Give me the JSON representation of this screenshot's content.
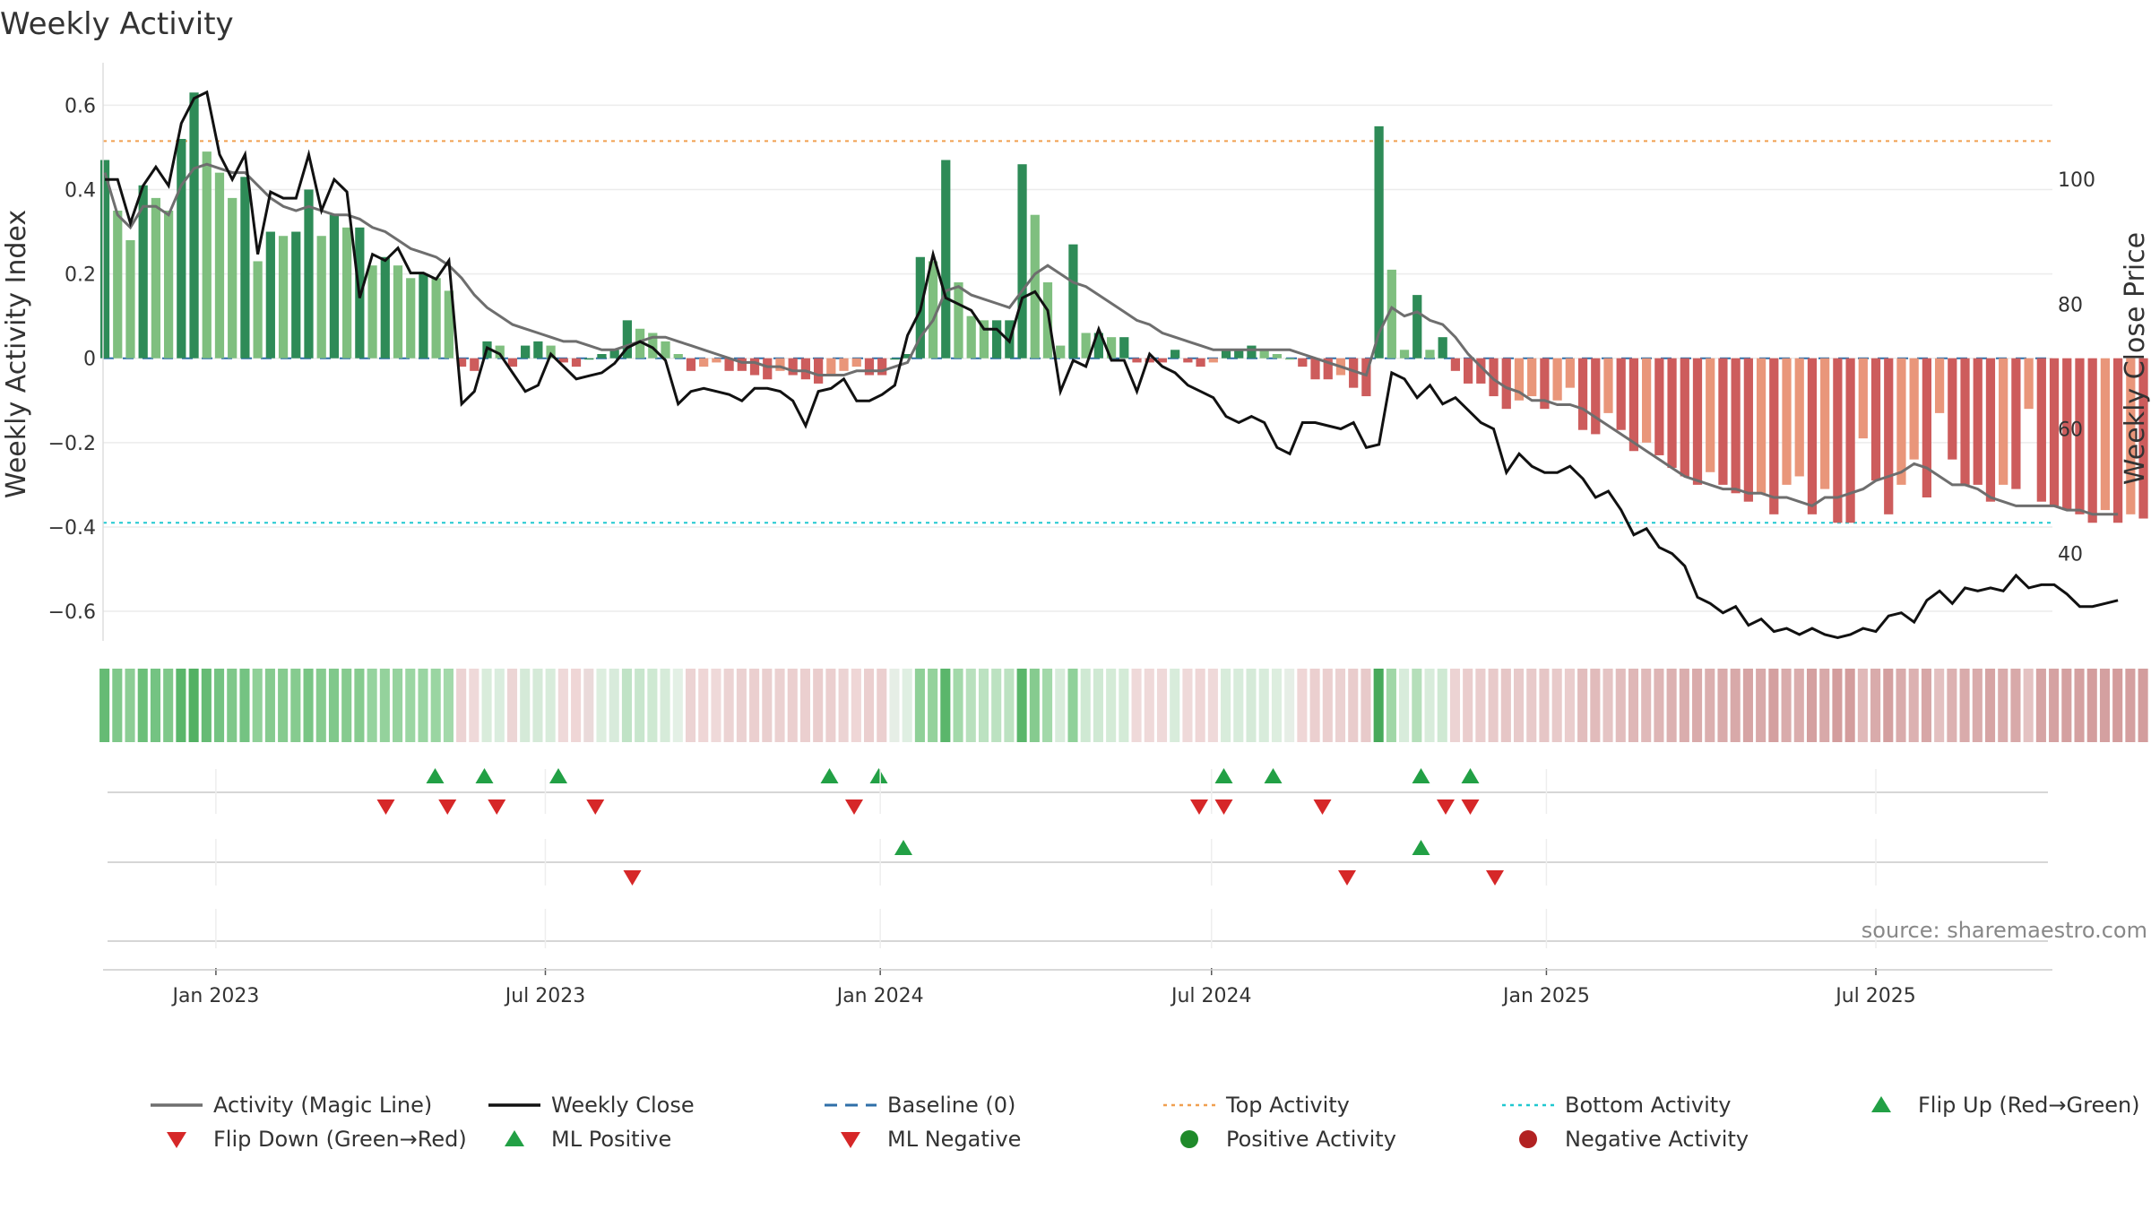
{
  "chart_data": {
    "type": "bar",
    "title": "Weekly Activity",
    "ylabel": "Weekly Activity Index",
    "y2label": "Weekly Close Price",
    "ylim": [
      -0.67,
      0.69
    ],
    "y2lim": [
      26,
      118
    ],
    "xlim": [
      "2022-10-31",
      "2025-10-06"
    ],
    "yticks": [
      0.6,
      0.4,
      0.2,
      0,
      -0.2,
      -0.4,
      -0.6
    ],
    "ytick_labels": [
      "0.6",
      "0.4",
      "0.2",
      "0",
      "−0.2",
      "−0.4",
      "−0.6"
    ],
    "y2ticks": [
      100,
      80,
      60,
      40
    ],
    "y2tick_labels": [
      "100",
      "80",
      "60",
      "40"
    ],
    "xticks": [
      {
        "date": "2023-01-01",
        "label": "Jan 2023"
      },
      {
        "date": "2023-07-01",
        "label": "Jul 2023"
      },
      {
        "date": "2024-01-01",
        "label": "Jan 2024"
      },
      {
        "date": "2024-07-01",
        "label": "Jul 2024"
      },
      {
        "date": "2025-01-01",
        "label": "Jan 2025"
      },
      {
        "date": "2025-07-01",
        "label": "Jul 2025"
      }
    ],
    "start_date": "2022-11-01",
    "reference_lines": {
      "baseline": 0,
      "top_activity": 0.515,
      "bottom_activity": -0.39
    },
    "activity": [
      0.47,
      0.35,
      0.28,
      0.41,
      0.38,
      0.35,
      0.52,
      0.63,
      0.49,
      0.44,
      0.38,
      0.43,
      0.23,
      0.3,
      0.29,
      0.3,
      0.4,
      0.29,
      0.34,
      0.31,
      0.31,
      0.22,
      0.24,
      0.22,
      0.19,
      0.2,
      0.19,
      0.16,
      -0.02,
      -0.03,
      0.04,
      0.03,
      -0.02,
      0.03,
      0.04,
      0.03,
      -0.01,
      -0.02,
      0.0,
      0.01,
      0.02,
      0.09,
      0.07,
      0.06,
      0.04,
      0.01,
      -0.03,
      -0.02,
      -0.01,
      -0.03,
      -0.03,
      -0.04,
      -0.05,
      -0.03,
      -0.04,
      -0.05,
      -0.06,
      -0.04,
      -0.03,
      -0.02,
      -0.04,
      -0.04,
      0.0,
      0.01,
      0.24,
      0.23,
      0.47,
      0.18,
      0.1,
      0.09,
      0.09,
      0.09,
      0.46,
      0.34,
      0.18,
      0.03,
      0.27,
      0.06,
      0.06,
      0.05,
      0.05,
      -0.01,
      -0.01,
      -0.01,
      0.02,
      -0.01,
      -0.02,
      -0.01,
      0.02,
      0.02,
      0.03,
      0.02,
      0.01,
      0.0,
      -0.02,
      -0.05,
      -0.05,
      -0.04,
      -0.07,
      -0.09,
      0.55,
      0.21,
      0.02,
      0.15,
      0.02,
      0.05,
      -0.03,
      -0.06,
      -0.06,
      -0.09,
      -0.12,
      -0.1,
      -0.09,
      -0.12,
      -0.1,
      -0.07,
      -0.17,
      -0.18,
      -0.13,
      -0.17,
      -0.22,
      -0.2,
      -0.23,
      -0.26,
      -0.28,
      -0.3,
      -0.27,
      -0.3,
      -0.32,
      -0.34,
      -0.32,
      -0.37,
      -0.3,
      -0.28,
      -0.37,
      -0.31,
      -0.39,
      -0.39,
      -0.19,
      -0.29,
      -0.37,
      -0.3,
      -0.24,
      -0.33,
      -0.13,
      -0.24,
      -0.3,
      -0.3,
      -0.34,
      -0.3,
      -0.31,
      -0.12,
      -0.34,
      -0.35,
      -0.36,
      -0.37,
      -0.39,
      -0.36,
      -0.39,
      -0.37,
      -0.38
    ],
    "magic_line": [
      0.44,
      0.34,
      0.31,
      0.36,
      0.36,
      0.34,
      0.41,
      0.45,
      0.46,
      0.45,
      0.44,
      0.44,
      0.41,
      0.38,
      0.36,
      0.35,
      0.36,
      0.35,
      0.34,
      0.34,
      0.33,
      0.31,
      0.3,
      0.28,
      0.26,
      0.25,
      0.24,
      0.22,
      0.19,
      0.15,
      0.12,
      0.1,
      0.08,
      0.07,
      0.06,
      0.05,
      0.04,
      0.04,
      0.03,
      0.02,
      0.02,
      0.03,
      0.04,
      0.05,
      0.05,
      0.04,
      0.03,
      0.02,
      0.01,
      0.0,
      -0.01,
      -0.01,
      -0.02,
      -0.02,
      -0.03,
      -0.03,
      -0.04,
      -0.04,
      -0.04,
      -0.03,
      -0.03,
      -0.03,
      -0.02,
      -0.01,
      0.05,
      0.09,
      0.16,
      0.17,
      0.15,
      0.14,
      0.13,
      0.12,
      0.16,
      0.2,
      0.22,
      0.2,
      0.18,
      0.17,
      0.15,
      0.13,
      0.11,
      0.09,
      0.08,
      0.06,
      0.05,
      0.04,
      0.03,
      0.02,
      0.02,
      0.02,
      0.02,
      0.02,
      0.02,
      0.02,
      0.01,
      0.0,
      -0.01,
      -0.02,
      -0.03,
      -0.04,
      0.06,
      0.12,
      0.1,
      0.11,
      0.09,
      0.08,
      0.05,
      0.01,
      -0.02,
      -0.05,
      -0.07,
      -0.08,
      -0.1,
      -0.1,
      -0.11,
      -0.11,
      -0.12,
      -0.14,
      -0.16,
      -0.18,
      -0.2,
      -0.22,
      -0.24,
      -0.26,
      -0.28,
      -0.29,
      -0.3,
      -0.31,
      -0.31,
      -0.32,
      -0.32,
      -0.33,
      -0.33,
      -0.34,
      -0.35,
      -0.33,
      -0.33,
      -0.32,
      -0.31,
      -0.29,
      -0.28,
      -0.27,
      -0.25,
      -0.26,
      -0.28,
      -0.3,
      -0.3,
      -0.31,
      -0.33,
      -0.34,
      -0.35,
      -0.35,
      -0.35,
      -0.35,
      -0.36,
      -0.36,
      -0.37,
      -0.37,
      -0.37
    ],
    "weekly_close": [
      100.0,
      100.0,
      93.0,
      99.0,
      102.0,
      99.0,
      109.0,
      113.0,
      114.0,
      104.0,
      100.0,
      104.0,
      88.0,
      98.0,
      97.0,
      97.0,
      104.0,
      95.0,
      100.0,
      98.0,
      81.0,
      88.0,
      87.0,
      89.0,
      85.0,
      85.0,
      84.0,
      87.0,
      64.0,
      66.0,
      73.0,
      72.0,
      69.0,
      66.0,
      67.0,
      72.0,
      70.0,
      68.0,
      68.5,
      69.0,
      70.5,
      73.0,
      74.0,
      73.0,
      71.0,
      64.0,
      66.0,
      66.5,
      66.0,
      65.5,
      64.5,
      66.5,
      66.5,
      66.0,
      64.5,
      60.5,
      66.0,
      66.5,
      68.0,
      64.5,
      64.5,
      65.5,
      67.0,
      75.0,
      79.0,
      88.0,
      81.0,
      80.0,
      79.0,
      76.0,
      76.0,
      74.0,
      81.0,
      82.0,
      79.0,
      66.0,
      71.0,
      70.0,
      76.0,
      71.0,
      71.0,
      66.0,
      72.0,
      70.0,
      69.0,
      67.0,
      66.0,
      65.0,
      62.0,
      61.0,
      62.0,
      61.0,
      57.0,
      56.0,
      61.0,
      61.0,
      60.5,
      60.0,
      61.0,
      57.0,
      57.5,
      69.0,
      68.0,
      65.0,
      67.0,
      64.0,
      65.0,
      63.0,
      61.0,
      60.0,
      53.0,
      56.0,
      54.0,
      53.0,
      53.0,
      54.0,
      52.0,
      49.0,
      50.0,
      47.0,
      43.0,
      44.0,
      41.0,
      40.0,
      38.0,
      33.0,
      32.0,
      30.5,
      31.5,
      28.5,
      29.5,
      27.5,
      28.0,
      27.0,
      28.0,
      27.0,
      26.5,
      27.0,
      28.0,
      27.5,
      30.0,
      30.5,
      29.0,
      32.5,
      34.0,
      32.0,
      34.5,
      34.0,
      34.5,
      34.0,
      36.5,
      34.5,
      35.0,
      35.0,
      33.5,
      31.5,
      31.5,
      32.0,
      32.5
    ],
    "strip_colors": [
      "#66bb74",
      "#7fc88a",
      "#8ccd95",
      "#6cbf79",
      "#74c382",
      "#7fc88a",
      "#5ab66b",
      "#52b163",
      "#66bb74",
      "#74c382",
      "#7fc88a",
      "#74c382",
      "#8fd098",
      "#86cb8f",
      "#86cb8f",
      "#86cb8f",
      "#79c585",
      "#86cb8f",
      "#80c88b",
      "#86cb8f",
      "#86cb8f",
      "#96d39f",
      "#94d29c",
      "#96d39f",
      "#9bd6a3",
      "#9ad5a2",
      "#9ad5a2",
      "#a3d9aa",
      "#ecd3d3",
      "#efd9d9",
      "#d9ecdb",
      "#daedde",
      "#ecd5d5",
      "#d5eaD8",
      "#d5ead8",
      "#d8ecdb",
      "#efd9d9",
      "#efd6d6",
      "#eadada",
      "#ddeedf",
      "#d8ebdb",
      "#c0e3c6",
      "#c8e6cd",
      "#cee9d2",
      "#d6ebd9",
      "#e3f0e5",
      "#ecd3d3",
      "#efd6d6",
      "#efd9d9",
      "#ecd3d3",
      "#ebd1d1",
      "#ebcfcf",
      "#eacfcf",
      "#ebd1d1",
      "#ebcfcf",
      "#ebcfcf",
      "#eacdcd",
      "#ebcfcf",
      "#ecd3d3",
      "#efd6d6",
      "#ebcfcf",
      "#ebcfcf",
      "#e6eee6",
      "#dfefe2",
      "#8fd098",
      "#94d29c",
      "#5ab66b",
      "#a3d9aa",
      "#b8e0bd",
      "#bce2c1",
      "#bce2c1",
      "#bce2c1",
      "#5ab66b",
      "#86cb8f",
      "#a3d9aa",
      "#d8ecdb",
      "#90d19a",
      "#cfe9d3",
      "#cfe9d3",
      "#d4ebd7",
      "#d4ebd7",
      "#efd9d9",
      "#efd9d9",
      "#efd9d9",
      "#d8ecdb",
      "#efd9d9",
      "#efd6d6",
      "#efd9d9",
      "#d8ecdb",
      "#d8ecdb",
      "#d5ead8",
      "#d8ecdb",
      "#ddeedf",
      "#e6eee6",
      "#efd6d6",
      "#ebcfcf",
      "#ebcfcf",
      "#ebd1d1",
      "#e9cccc",
      "#e8caca",
      "#46a95a",
      "#a0d7a7",
      "#d8ecdb",
      "#b5dfba",
      "#d8ecdb",
      "#cfe9d3",
      "#ecd3d3",
      "#eacdcd",
      "#eacdcd",
      "#e8caca",
      "#e6c6c6",
      "#e8caca",
      "#e8caca",
      "#e6c6c6",
      "#e8caca",
      "#eacdcd",
      "#e2bdbd",
      "#e1bbbb",
      "#e5c4c4",
      "#e2bdbd",
      "#dfb7b7",
      "#e0b9b9",
      "#deb5b5",
      "#dcb1b1",
      "#daadad",
      "#d9abab",
      "#dbafaf",
      "#d9abab",
      "#d8a9a9",
      "#d6a4a4",
      "#d8a9a9",
      "#d4a0a0",
      "#d9abab",
      "#daadad",
      "#d4a0a0",
      "#d8a9a9",
      "#d39d9d",
      "#d39d9d",
      "#e0b9b9",
      "#d9abab",
      "#d4a0a0",
      "#d9abab",
      "#dcb1b1",
      "#d7a7a7",
      "#e3c0c0",
      "#dcb1b1",
      "#d9abab",
      "#d9abab",
      "#d6a4a4",
      "#d9abab",
      "#d8a9a9",
      "#e4c2c2",
      "#d6a4a4",
      "#d5a2a2",
      "#d4a0a0",
      "#d4a0a0",
      "#d39d9d",
      "#d4a0a0",
      "#d39d9d",
      "#d4a0a0",
      "#d39d9d"
    ],
    "flip_up": [
      17,
      19,
      22,
      33,
      35,
      49,
      51,
      57,
      59
    ],
    "flip_down": [
      15,
      17.5,
      19.5,
      23.5,
      34,
      48,
      49,
      53,
      58,
      59
    ],
    "ml_positive": [
      36,
      57
    ],
    "ml_negative": [
      25,
      54,
      60
    ],
    "legend": [
      {
        "label": "Activity (Magic Line)",
        "style": "line",
        "color": "#6e6e6e"
      },
      {
        "label": "Weekly Close",
        "style": "line",
        "color": "#111111"
      },
      {
        "label": "Baseline (0)",
        "style": "dash",
        "color": "#2f6fa8"
      },
      {
        "label": "Top Activity",
        "style": "dot",
        "color": "#f0a050"
      },
      {
        "label": "Bottom Activity",
        "style": "dot",
        "color": "#20c8d0"
      },
      {
        "label": "Flip Up (Red→Green)",
        "style": "tri-up",
        "color": "#22a045"
      },
      {
        "label": "Flip Down (Green→Red)",
        "style": "tri-down",
        "color": "#d62728"
      },
      {
        "label": "ML Positive",
        "style": "tri-up",
        "color": "#22a045"
      },
      {
        "label": "ML Negative",
        "style": "tri-down",
        "color": "#d62728"
      },
      {
        "label": "Positive Activity",
        "style": "circle",
        "color": "#1f8a2a"
      },
      {
        "label": "Negative Activity",
        "style": "circle",
        "color": "#b22222"
      }
    ],
    "source": "source: sharemaestro.com",
    "colors": {
      "pos_strong": "#2e8b57",
      "pos_light": "#7fbf7f",
      "neg_strong": "#cd5c5c",
      "neg_light": "#e9967a",
      "up_marker": "#22a045",
      "down_marker": "#d62728"
    }
  }
}
